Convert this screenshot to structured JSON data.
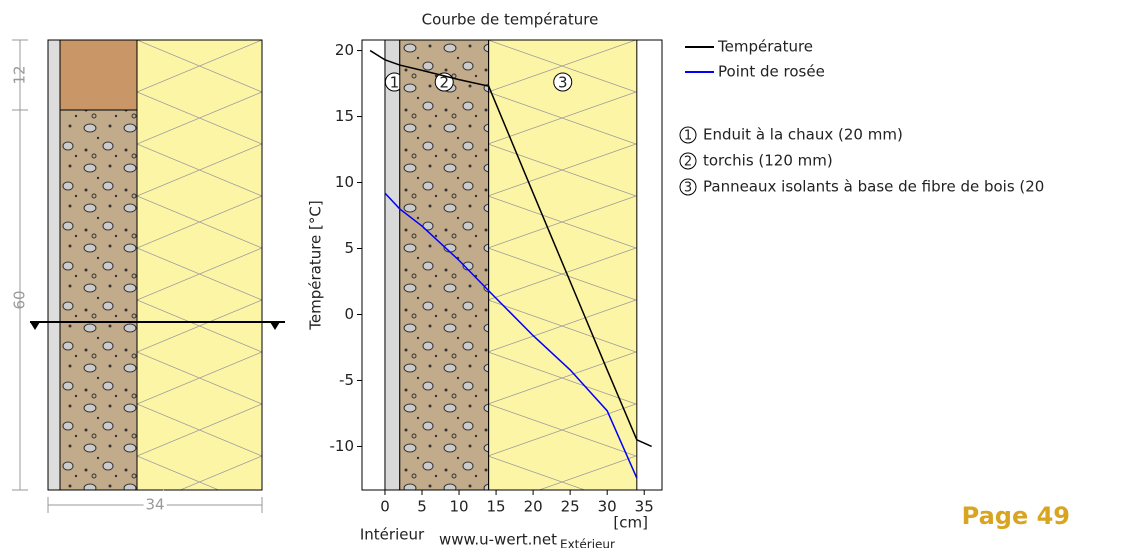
{
  "wall_diagram": {
    "dimensions": [
      "12",
      "60",
      "34"
    ]
  },
  "chart_data": {
    "type": "line",
    "title": "Courbe de température",
    "y_label": "Température [°C]",
    "x_label": "[cm]",
    "x": [
      -2,
      0,
      2,
      5,
      10,
      14,
      20,
      25,
      30,
      34,
      36
    ],
    "series": [
      {
        "name": "Température",
        "color": "#000000",
        "values": [
          20,
          19.3,
          18.9,
          18.5,
          17.8,
          17.3,
          9.2,
          2.5,
          -4.2,
          -9.5,
          -10
        ]
      },
      {
        "name": "Point de rosée",
        "color": "#0000ff",
        "values": [
          null,
          9.2,
          8.0,
          6.7,
          4.1,
          1.8,
          -1.6,
          -4.2,
          -7.3,
          -12.4,
          null
        ]
      }
    ],
    "layers": [
      {
        "label": "1",
        "name": "Enduit à la chaux (20 mm)",
        "from": 0,
        "to": 2,
        "color": "#d9d9d9"
      },
      {
        "label": "2",
        "name": "torchis (120 mm)",
        "from": 2,
        "to": 14,
        "color": "#c2ab8a"
      },
      {
        "label": "3",
        "name": "Panneaux isolants à base de fibre de bois (20",
        "from": 14,
        "to": 34,
        "color": "#fdf5a6"
      }
    ],
    "xlim": [
      -3.1,
      37.4
    ],
    "ylim": [
      -13.3,
      20.8
    ],
    "xticks": [
      0,
      5,
      10,
      15,
      20,
      25,
      30,
      35
    ],
    "yticks": [
      -10,
      -5,
      0,
      5,
      10,
      15,
      20
    ],
    "notes": [
      "Intérieur",
      "www.u-wert.net",
      "Extérieur"
    ]
  },
  "page_label": "Page 49"
}
